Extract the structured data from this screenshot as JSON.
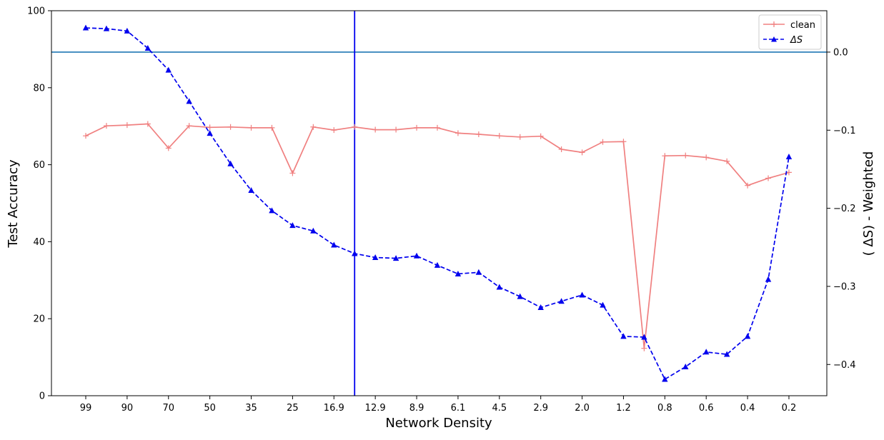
{
  "chart_data": {
    "type": "line",
    "xlabel": "Network Density",
    "ylabel_left": "Test Accuracy",
    "ylabel_right": "( ΔS) - Weighted",
    "y_left_lim": [
      0,
      100
    ],
    "y_left_ticks": [
      0,
      20,
      40,
      60,
      80,
      100
    ],
    "y_right_lim": [
      -0.44,
      0.053
    ],
    "y_right_ticks": [
      -0.4,
      -0.3,
      -0.2,
      -0.1,
      0.0
    ],
    "y_right_tick_labels": [
      "−0.4",
      "−0.3",
      "−0.2",
      "−0.1",
      "0.0"
    ],
    "x_tick_labels": [
      "99",
      "90",
      "70",
      "50",
      "35",
      "25",
      "16.9",
      "12.9",
      "8.9",
      "6.1",
      "4.5",
      "2.9",
      "2.0",
      "1.2",
      "0.8",
      "0.6",
      "0.4",
      "0.2"
    ],
    "legend_position": "top-right",
    "horizontal_line": {
      "axis": "right",
      "value": 0.0,
      "color": "#1f77b4"
    },
    "vertical_line": {
      "point_index": 13,
      "color": "#0000ee"
    },
    "series": [
      {
        "name": "clean",
        "axis": "left",
        "color": "#f08080",
        "marker": "plus",
        "style": "solid",
        "values": [
          67.5,
          70.1,
          70.3,
          70.6,
          64.3,
          70.1,
          69.7,
          69.8,
          69.6,
          69.6,
          57.8,
          69.8,
          69.0,
          69.8,
          69.1,
          69.1,
          69.6,
          69.6,
          68.2,
          67.9,
          67.5,
          67.2,
          67.4,
          64.0,
          63.2,
          65.9,
          66.0,
          12.3,
          62.3,
          62.4,
          61.9,
          60.9,
          54.6,
          56.5,
          58.0
        ]
      },
      {
        "name": "ΔS",
        "axis": "right",
        "color": "#0000ee",
        "marker": "triangle",
        "style": "dashed",
        "values": [
          0.031,
          0.03,
          0.027,
          0.005,
          -0.023,
          -0.063,
          -0.104,
          -0.143,
          -0.177,
          -0.203,
          -0.222,
          -0.229,
          -0.247,
          -0.258,
          -0.263,
          -0.264,
          -0.261,
          -0.273,
          -0.284,
          -0.282,
          -0.301,
          -0.313,
          -0.327,
          -0.319,
          -0.311,
          -0.324,
          -0.364,
          -0.365,
          -0.419,
          -0.403,
          -0.384,
          -0.387,
          -0.364,
          -0.291,
          -0.134
        ]
      }
    ]
  }
}
